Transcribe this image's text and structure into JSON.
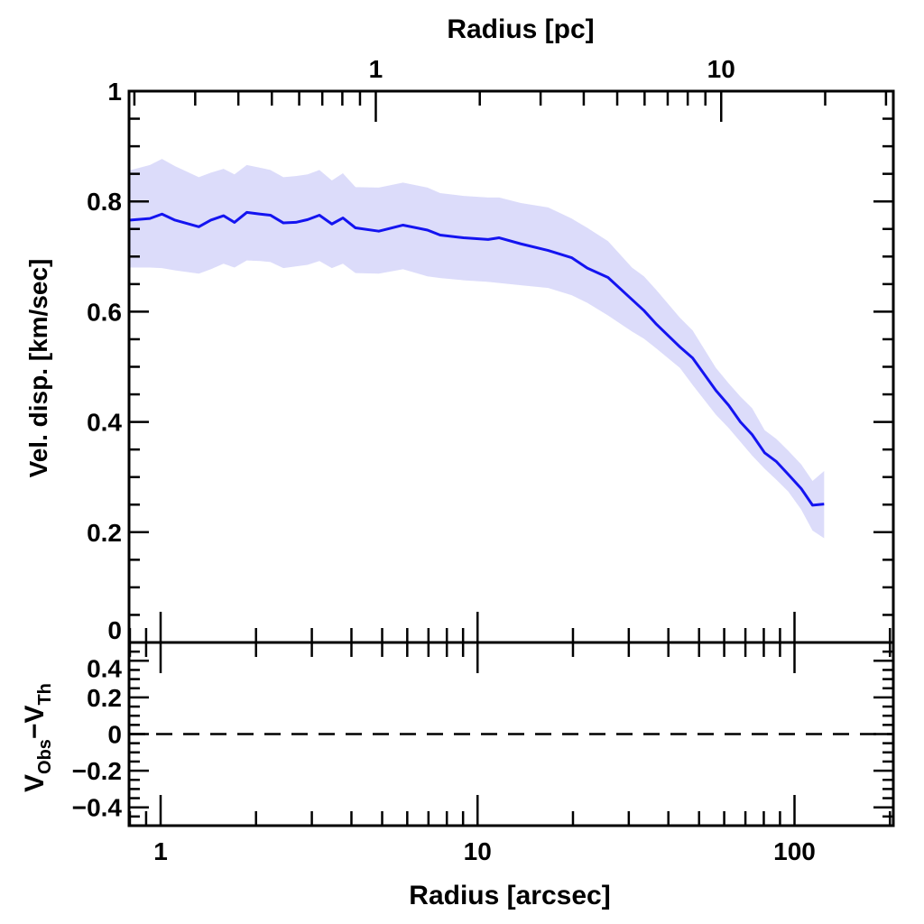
{
  "chart_data": [
    {
      "panel": "main",
      "type": "line",
      "xlabel": "Radius [arcsec]",
      "top_xlabel": "Radius [pc]",
      "ylabel": "Vel. disp. [km/sec]",
      "xscale": "log",
      "xlim": [
        0.795,
        205
      ],
      "top_xlim": [
        0.193,
        31.5
      ],
      "top_xticks": [
        1,
        10
      ],
      "top_xtick_labels": [
        "1",
        "10"
      ],
      "ylim": [
        0,
        1
      ],
      "yticks": [
        0,
        0.2,
        0.4,
        0.6,
        0.8,
        1
      ],
      "ytick_labels": [
        "0",
        "0.2",
        "0.4",
        "0.6",
        "0.8",
        "1"
      ],
      "grid": false,
      "line_color": "#1414f0",
      "band_color": "#dcdcfa",
      "series": [
        {
          "x": [
            0.795,
            0.925,
            1.01,
            1.11,
            1.32,
            1.44,
            1.58,
            1.71,
            1.87,
            2.06,
            2.22,
            2.44,
            2.67,
            2.91,
            3.17,
            3.47,
            3.76,
            4.12,
            4.88,
            5.82,
            6.95,
            7.62,
            9.03,
            10.8,
            11.7,
            13.7,
            16.7,
            19.8,
            22.2,
            25.8,
            30.7,
            33.5,
            36.7,
            43.5,
            47.7,
            56.5,
            62.0,
            67.5,
            73.5,
            80.5,
            87.7,
            95.5,
            105,
            114,
            124
          ],
          "y": [
            0.766,
            0.769,
            0.777,
            0.766,
            0.754,
            0.766,
            0.774,
            0.762,
            0.78,
            0.777,
            0.775,
            0.761,
            0.762,
            0.767,
            0.775,
            0.759,
            0.77,
            0.752,
            0.746,
            0.757,
            0.748,
            0.739,
            0.734,
            0.731,
            0.734,
            0.723,
            0.711,
            0.698,
            0.679,
            0.662,
            0.622,
            0.602,
            0.577,
            0.536,
            0.516,
            0.457,
            0.43,
            0.4,
            0.377,
            0.344,
            0.328,
            0.305,
            0.279,
            0.249,
            0.251
          ],
          "y_upper": [
            0.856,
            0.866,
            0.877,
            0.864,
            0.844,
            0.852,
            0.859,
            0.849,
            0.866,
            0.861,
            0.857,
            0.844,
            0.846,
            0.849,
            0.857,
            0.838,
            0.851,
            0.826,
            0.825,
            0.834,
            0.825,
            0.815,
            0.81,
            0.807,
            0.807,
            0.797,
            0.789,
            0.769,
            0.752,
            0.728,
            0.68,
            0.664,
            0.639,
            0.589,
            0.566,
            0.498,
            0.47,
            0.446,
            0.425,
            0.385,
            0.369,
            0.348,
            0.323,
            0.293,
            0.311
          ],
          "y_lower": [
            0.68,
            0.68,
            0.679,
            0.675,
            0.669,
            0.677,
            0.687,
            0.68,
            0.693,
            0.692,
            0.69,
            0.679,
            0.682,
            0.685,
            0.692,
            0.679,
            0.687,
            0.67,
            0.669,
            0.677,
            0.664,
            0.661,
            0.657,
            0.654,
            0.652,
            0.648,
            0.643,
            0.63,
            0.616,
            0.593,
            0.564,
            0.551,
            0.533,
            0.498,
            0.467,
            0.413,
            0.389,
            0.364,
            0.339,
            0.315,
            0.295,
            0.274,
            0.241,
            0.203,
            0.189
          ]
        }
      ]
    },
    {
      "panel": "residual",
      "type": "line",
      "xlabel": "Radius [arcsec]",
      "ylabel_main": "V",
      "ylabel_sub1": "Obs",
      "ylabel_minus": "−",
      "ylabel_sub2": "Th",
      "xscale": "log",
      "xlim": [
        0.795,
        205
      ],
      "xticks": [
        1,
        10,
        100
      ],
      "xtick_labels": [
        "1",
        "10",
        "100"
      ],
      "ylim": [
        -0.5,
        0.5
      ],
      "yticks": [
        -0.4,
        -0.2,
        0,
        0.2,
        0.4
      ],
      "ytick_labels": [
        "−0.4",
        "−0.2",
        "0",
        "0.2",
        "0.4"
      ],
      "reference_line": {
        "y": 0,
        "style": "dashed"
      }
    }
  ]
}
